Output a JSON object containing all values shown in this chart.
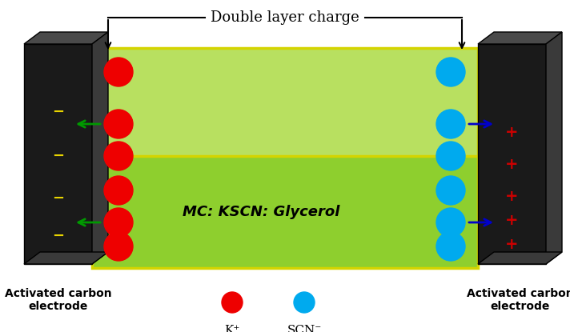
{
  "title": "Double layer charge",
  "electrolyte_label": "MC: KSCN: Glycerol",
  "electrode_label": "Activated carbon\nelectrode",
  "legend_red_label": "K⁺",
  "legend_blue_label": "SCN⁻",
  "bg_color": "#ffffff",
  "electrolyte_color": "#8ecf2e",
  "electrolyte_top_color": "#b8e060",
  "electrolyte_border_color": "#d4d400",
  "electrode_color": "#1a1a1a",
  "electrode_side_color": "#3a3a3a",
  "electrode_top_color": "#4a4a4a",
  "minus_color": "#e8d400",
  "plus_color": "#cc0000",
  "red_dot_color": "#ee0000",
  "blue_dot_color": "#00aaee",
  "arrow_color_green": "#009900",
  "arrow_color_blue": "#0000cc",
  "title_arrow_color": "#000000",
  "fig_width": 7.12,
  "fig_height": 4.15,
  "dpi": 100
}
